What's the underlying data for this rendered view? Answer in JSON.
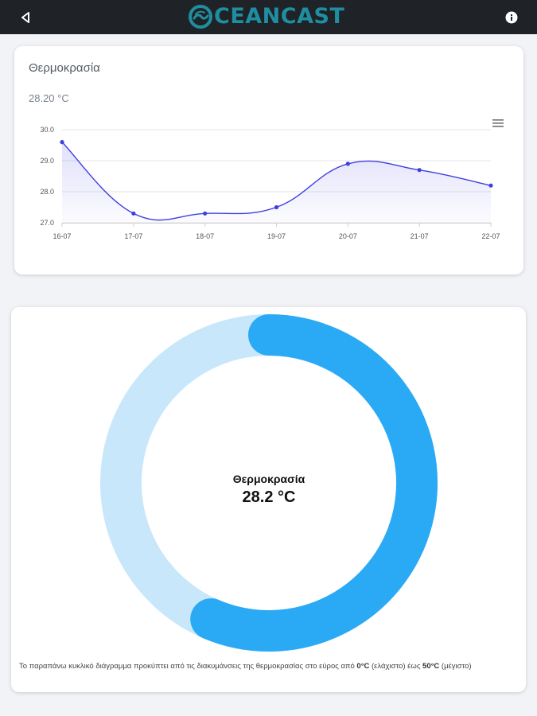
{
  "app": {
    "logo_text": "CEANCAST",
    "logo_icon": "wave-logo-icon",
    "back_icon": "back-triangle-icon",
    "info_icon": "info-icon"
  },
  "colors": {
    "topbar": "#1f2327",
    "logo": "#1f8ea0",
    "line": "#3f3fe0",
    "donut_fill": "#2aaaf5",
    "donut_track": "#c9e7fb"
  },
  "line_chart": {
    "title": "Θερμοκρασία",
    "subtitle": "28.20 °C",
    "menu_icon": "hamburger-menu-icon"
  },
  "chart_data": [
    {
      "type": "area",
      "title": "Θερμοκρασία",
      "subtitle": "28.20 °C",
      "categories": [
        "16-07",
        "17-07",
        "18-07",
        "19-07",
        "20-07",
        "21-07",
        "22-07"
      ],
      "values": [
        29.6,
        27.3,
        27.3,
        27.5,
        28.9,
        28.7,
        28.2
      ],
      "yticks": [
        "30.0",
        "29.0",
        "28.0",
        "27.0"
      ],
      "ylim": [
        27.0,
        30.0
      ],
      "grid": true,
      "xlabel": "",
      "ylabel": ""
    },
    {
      "type": "pie",
      "label": "Θερμοκρασία",
      "value": 28.2,
      "range": [
        0,
        50
      ],
      "display_value": "28.2 °C"
    }
  ],
  "donut": {
    "label": "Θερμοκρασία",
    "value_text": "28.2 °C",
    "note_part1": "Το παραπάνω κυκλικό διάγραμμα προκύπτει από τις διακυμάνσεις της θερμοκρασίας στο εύρος από ",
    "note_min": "0°C",
    "note_part2": " (ελάχιστο) έως ",
    "note_max": "50°C",
    "note_part3": " (μέγιστο)"
  }
}
